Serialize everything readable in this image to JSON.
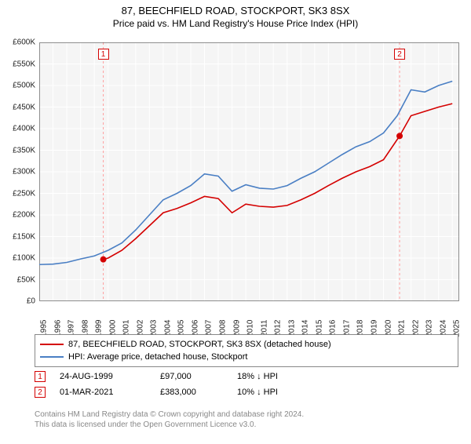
{
  "title": "87, BEECHFIELD ROAD, STOCKPORT, SK3 8SX",
  "subtitle": "Price paid vs. HM Land Registry's House Price Index (HPI)",
  "chart": {
    "type": "line",
    "background_color": "#f5f5f5",
    "grid_color": "#ffffff",
    "axis_color": "#222222",
    "ylim": [
      0,
      600000
    ],
    "ytick_step": 50000,
    "y_ticks": [
      0,
      50000,
      100000,
      150000,
      200000,
      250000,
      300000,
      350000,
      400000,
      450000,
      500000,
      550000,
      600000
    ],
    "y_tick_labels": [
      "£0",
      "£50K",
      "£100K",
      "£150K",
      "£200K",
      "£250K",
      "£300K",
      "£350K",
      "£400K",
      "£450K",
      "£500K",
      "£550K",
      "£600K"
    ],
    "x_years": [
      1995,
      1996,
      1997,
      1998,
      1999,
      2000,
      2001,
      2002,
      2003,
      2004,
      2005,
      2006,
      2007,
      2008,
      2009,
      2010,
      2011,
      2012,
      2013,
      2014,
      2015,
      2016,
      2017,
      2018,
      2019,
      2020,
      2021,
      2022,
      2023,
      2024,
      2025
    ],
    "x_range": [
      1995,
      2025.5
    ],
    "label_fontsize": 10,
    "line_width": 1.6,
    "series": [
      {
        "name": "price_paid",
        "color": "#d40000",
        "points": [
          [
            1999.65,
            97000
          ],
          [
            2000,
            100000
          ],
          [
            2001,
            118000
          ],
          [
            2002,
            145000
          ],
          [
            2003,
            175000
          ],
          [
            2004,
            205000
          ],
          [
            2005,
            215000
          ],
          [
            2006,
            228000
          ],
          [
            2007,
            243000
          ],
          [
            2008,
            238000
          ],
          [
            2009,
            205000
          ],
          [
            2010,
            225000
          ],
          [
            2011,
            220000
          ],
          [
            2012,
            218000
          ],
          [
            2013,
            222000
          ],
          [
            2014,
            235000
          ],
          [
            2015,
            250000
          ],
          [
            2016,
            268000
          ],
          [
            2017,
            285000
          ],
          [
            2018,
            300000
          ],
          [
            2019,
            312000
          ],
          [
            2020,
            328000
          ],
          [
            2021.17,
            383000
          ],
          [
            2022,
            430000
          ],
          [
            2023,
            440000
          ],
          [
            2024,
            450000
          ],
          [
            2025,
            458000
          ]
        ]
      },
      {
        "name": "hpi",
        "color": "#4a7fc4",
        "points": [
          [
            1995,
            85000
          ],
          [
            1996,
            86000
          ],
          [
            1997,
            90000
          ],
          [
            1998,
            98000
          ],
          [
            1999,
            105000
          ],
          [
            2000,
            118000
          ],
          [
            2001,
            135000
          ],
          [
            2002,
            165000
          ],
          [
            2003,
            200000
          ],
          [
            2004,
            235000
          ],
          [
            2005,
            250000
          ],
          [
            2006,
            268000
          ],
          [
            2007,
            295000
          ],
          [
            2008,
            290000
          ],
          [
            2009,
            255000
          ],
          [
            2010,
            270000
          ],
          [
            2011,
            262000
          ],
          [
            2012,
            260000
          ],
          [
            2013,
            268000
          ],
          [
            2014,
            285000
          ],
          [
            2015,
            300000
          ],
          [
            2016,
            320000
          ],
          [
            2017,
            340000
          ],
          [
            2018,
            358000
          ],
          [
            2019,
            370000
          ],
          [
            2020,
            390000
          ],
          [
            2021,
            430000
          ],
          [
            2022,
            490000
          ],
          [
            2023,
            485000
          ],
          [
            2024,
            500000
          ],
          [
            2025,
            510000
          ]
        ]
      }
    ],
    "sale_markers": [
      {
        "n": "1",
        "year": 1999.65,
        "price": 97000,
        "color": "#d40000",
        "dash_color": "#ff9e9e"
      },
      {
        "n": "2",
        "year": 2021.17,
        "price": 383000,
        "color": "#d40000",
        "dash_color": "#ff9e9e"
      }
    ]
  },
  "legend": {
    "items": [
      {
        "color": "#d40000",
        "label": "87, BEECHFIELD ROAD, STOCKPORT, SK3 8SX (detached house)"
      },
      {
        "color": "#4a7fc4",
        "label": "HPI: Average price, detached house, Stockport"
      }
    ]
  },
  "sales": [
    {
      "n": "1",
      "color": "#d40000",
      "date": "24-AUG-1999",
      "price": "£97,000",
      "delta": "18% ↓ HPI"
    },
    {
      "n": "2",
      "color": "#d40000",
      "date": "01-MAR-2021",
      "price": "£383,000",
      "delta": "10% ↓ HPI"
    }
  ],
  "footer": {
    "line1": "Contains HM Land Registry data © Crown copyright and database right 2024.",
    "line2": "This data is licensed under the Open Government Licence v3.0."
  }
}
